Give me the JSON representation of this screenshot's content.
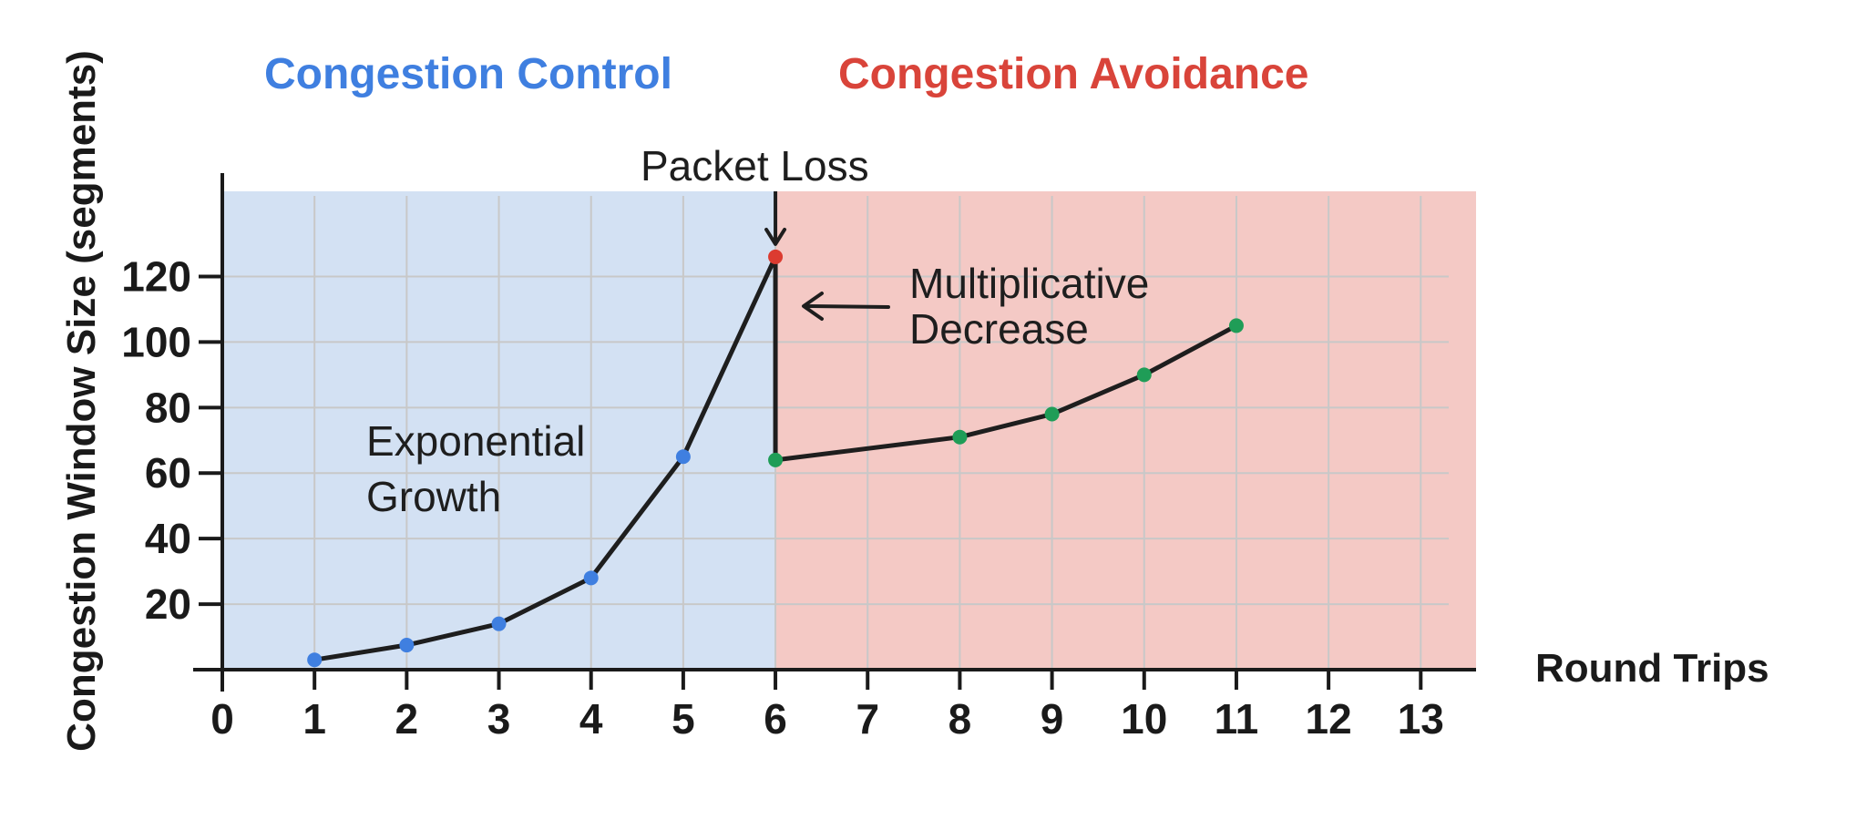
{
  "chart_data": {
    "type": "line",
    "xlabel": "Round Trips",
    "ylabel": "Congestion Window Size (segments)",
    "x_ticks": [
      0,
      1,
      2,
      3,
      4,
      5,
      6,
      7,
      8,
      9,
      10,
      11,
      12,
      13
    ],
    "y_ticks": [
      20,
      40,
      60,
      80,
      100,
      120
    ],
    "xlim": [
      0,
      13.6
    ],
    "ylim": [
      0,
      146
    ],
    "grid": true,
    "regions": [
      {
        "label": "Congestion Control",
        "x_start": 0,
        "x_end": 6,
        "color": "#d3e1f3",
        "label_color": "#3f7fe0"
      },
      {
        "label": "Congestion Avoidance",
        "x_start": 6,
        "x_end": 13.6,
        "color": "#f4c9c5",
        "label_color": "#d9443a"
      }
    ],
    "series": [
      {
        "points": [
          {
            "x": 1,
            "y": 3,
            "color": "#3f7fe0"
          },
          {
            "x": 2,
            "y": 7.5,
            "color": "#3f7fe0"
          },
          {
            "x": 3,
            "y": 14,
            "color": "#3f7fe0"
          },
          {
            "x": 4,
            "y": 28,
            "color": "#3f7fe0"
          },
          {
            "x": 5,
            "y": 65,
            "color": "#3f7fe0"
          },
          {
            "x": 6,
            "y": 126,
            "color": "#dc3b30"
          },
          {
            "x": 6,
            "y": 64,
            "color": "#1f9d57"
          },
          {
            "x": 8,
            "y": 71,
            "color": "#1f9d57"
          },
          {
            "x": 9,
            "y": 78,
            "color": "#1f9d57"
          },
          {
            "x": 10,
            "y": 90,
            "color": "#1f9d57"
          },
          {
            "x": 11,
            "y": 105,
            "color": "#1f9d57"
          }
        ]
      }
    ],
    "annotations": {
      "packet_loss": "Packet Loss",
      "exponential_line1": "Exponential",
      "exponential_line2": "Growth",
      "multiplicative_line1": "Multiplicative",
      "multiplicative_line2": "Decrease"
    }
  }
}
